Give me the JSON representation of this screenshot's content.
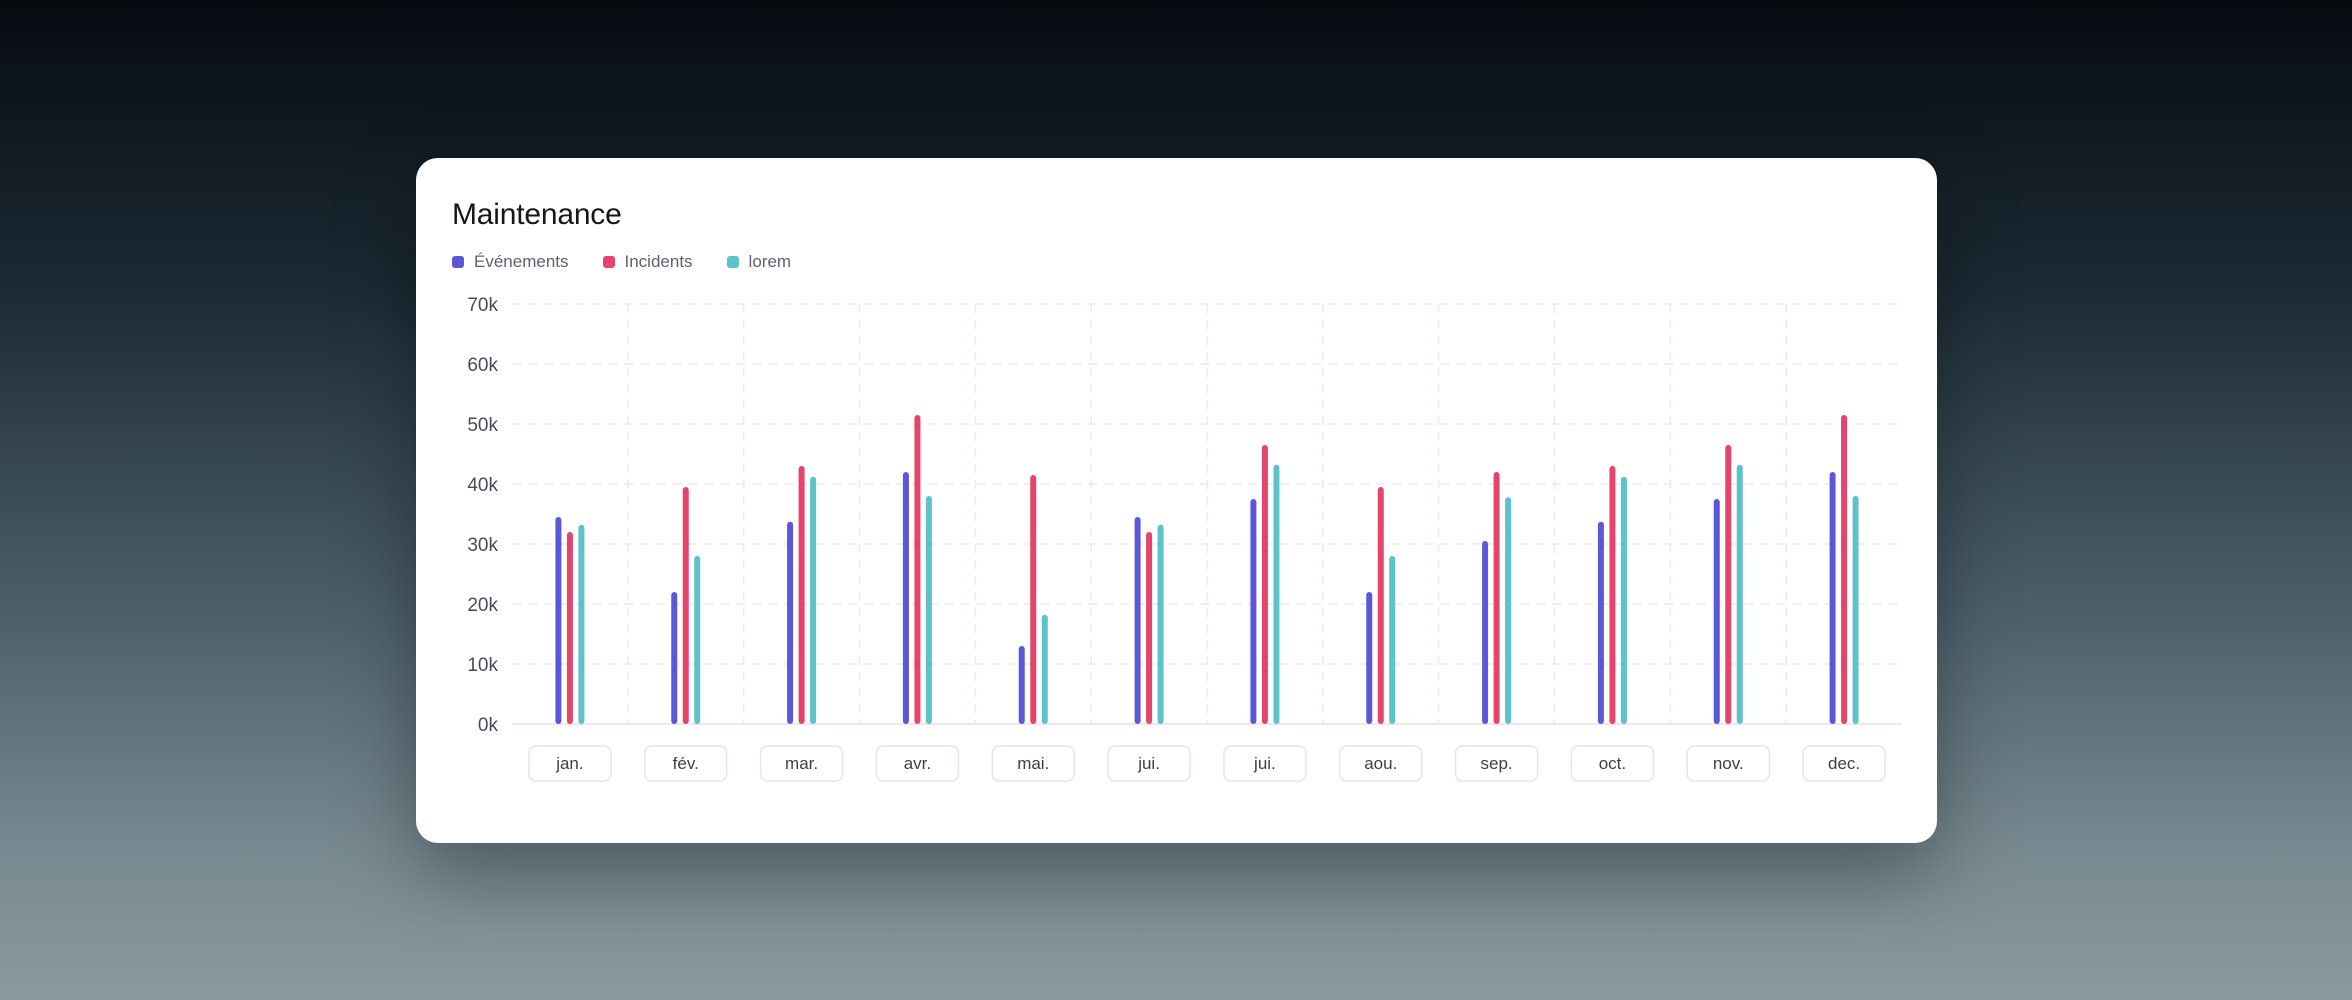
{
  "card": {
    "title": "Maintenance"
  },
  "legend": [
    {
      "label": "Événements",
      "color": "#5b57d9"
    },
    {
      "label": "Incidents",
      "color": "#e5446b"
    },
    {
      "label": "lorem",
      "color": "#5cc3cb"
    }
  ],
  "chart_data": {
    "type": "bar",
    "title": "Maintenance",
    "xlabel": "",
    "ylabel": "",
    "ylim": [
      0,
      70000
    ],
    "yticks": [
      0,
      10000,
      20000,
      30000,
      40000,
      50000,
      60000,
      70000
    ],
    "ytick_labels": [
      "0k",
      "10k",
      "20k",
      "30k",
      "40k",
      "50k",
      "60k",
      "70k"
    ],
    "grid": true,
    "legend_position": "top-left",
    "categories": [
      "jan.",
      "fév.",
      "mar.",
      "avr.",
      "mai.",
      "jui.",
      "jui.",
      "aou.",
      "sep.",
      "oct.",
      "nov.",
      "dec."
    ],
    "series": [
      {
        "name": "Événements",
        "color": "#5b57d9",
        "values": [
          34500,
          22000,
          33700,
          42000,
          13000,
          34500,
          37500,
          22000,
          30500,
          33700,
          37500,
          42000
        ]
      },
      {
        "name": "Incidents",
        "color": "#e5446b",
        "values": [
          32000,
          39500,
          43000,
          51500,
          41500,
          32000,
          46500,
          39500,
          42000,
          43000,
          46500,
          51500
        ]
      },
      {
        "name": "lorem",
        "color": "#5cc3cb",
        "values": [
          33200,
          28000,
          41200,
          38000,
          18200,
          33200,
          43200,
          28000,
          37800,
          41200,
          43200,
          38000
        ]
      }
    ]
  }
}
